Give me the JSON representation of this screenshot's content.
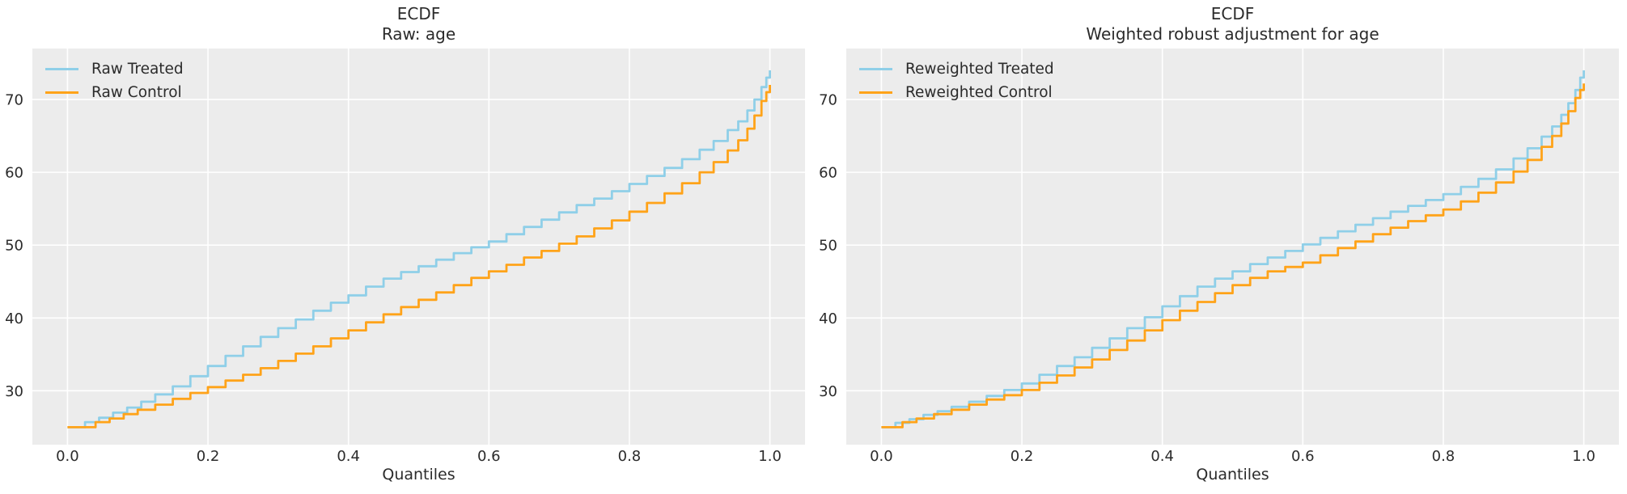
{
  "figure": {
    "background_color": "#ffffff",
    "axes_background_color": "#ececec",
    "grid_color": "#ffffff",
    "text_color": "#2b2b2b",
    "treated_color": "#8fcfe8",
    "control_color": "#ffa319"
  },
  "chart_data": [
    {
      "type": "line",
      "subtype": "step-quantile-ecdf",
      "title_line1": "ECDF",
      "title_line2": "Raw: age",
      "xlabel": "Quantiles",
      "ylabel": "",
      "grid": true,
      "legend_position": "upper-left",
      "xlim": [
        -0.05,
        1.05
      ],
      "ylim": [
        22.6,
        77.0
      ],
      "x_ticks": [
        {
          "value": 0.0,
          "label": "0.0"
        },
        {
          "value": 0.2,
          "label": "0.2"
        },
        {
          "value": 0.4,
          "label": "0.4"
        },
        {
          "value": 0.6,
          "label": "0.6"
        },
        {
          "value": 0.8,
          "label": "0.8"
        },
        {
          "value": 1.0,
          "label": "1.0"
        }
      ],
      "y_ticks": [
        {
          "value": 30,
          "label": "30"
        },
        {
          "value": 40,
          "label": "40"
        },
        {
          "value": 50,
          "label": "50"
        },
        {
          "value": 60,
          "label": "60"
        },
        {
          "value": 70,
          "label": "70"
        }
      ],
      "series": [
        {
          "name": "Raw Treated",
          "color_key": "treated_color",
          "steps": [
            [
              0,
              25
            ],
            [
              0.025,
              25.7
            ],
            [
              0.045,
              26.3
            ],
            [
              0.065,
              27
            ],
            [
              0.085,
              27.7
            ],
            [
              0.105,
              28.5
            ],
            [
              0.125,
              29.5
            ],
            [
              0.15,
              30.6
            ],
            [
              0.175,
              32
            ],
            [
              0.2,
              33.4
            ],
            [
              0.225,
              34.8
            ],
            [
              0.25,
              36.1
            ],
            [
              0.275,
              37.4
            ],
            [
              0.3,
              38.6
            ],
            [
              0.325,
              39.8
            ],
            [
              0.35,
              41
            ],
            [
              0.375,
              42.1
            ],
            [
              0.4,
              43.1
            ],
            [
              0.425,
              44.3
            ],
            [
              0.45,
              45.4
            ],
            [
              0.475,
              46.3
            ],
            [
              0.5,
              47.1
            ],
            [
              0.525,
              48
            ],
            [
              0.55,
              48.9
            ],
            [
              0.575,
              49.7
            ],
            [
              0.6,
              50.5
            ],
            [
              0.625,
              51.5
            ],
            [
              0.65,
              52.5
            ],
            [
              0.675,
              53.5
            ],
            [
              0.7,
              54.5
            ],
            [
              0.725,
              55.5
            ],
            [
              0.75,
              56.4
            ],
            [
              0.775,
              57.4
            ],
            [
              0.8,
              58.4
            ],
            [
              0.825,
              59.5
            ],
            [
              0.85,
              60.6
            ],
            [
              0.875,
              61.8
            ],
            [
              0.9,
              63.1
            ],
            [
              0.92,
              64.3
            ],
            [
              0.94,
              65.8
            ],
            [
              0.955,
              67
            ],
            [
              0.968,
              68.5
            ],
            [
              0.978,
              70
            ],
            [
              0.988,
              71.7
            ],
            [
              0.995,
              73
            ],
            [
              1,
              74
            ]
          ]
        },
        {
          "name": "Raw Control",
          "color_key": "control_color",
          "steps": [
            [
              0,
              25
            ],
            [
              0.04,
              25.7
            ],
            [
              0.06,
              26.2
            ],
            [
              0.08,
              26.8
            ],
            [
              0.1,
              27.4
            ],
            [
              0.125,
              28.1
            ],
            [
              0.15,
              28.9
            ],
            [
              0.175,
              29.7
            ],
            [
              0.2,
              30.5
            ],
            [
              0.225,
              31.4
            ],
            [
              0.25,
              32.2
            ],
            [
              0.275,
              33.1
            ],
            [
              0.3,
              34.1
            ],
            [
              0.325,
              35.1
            ],
            [
              0.35,
              36.1
            ],
            [
              0.375,
              37.2
            ],
            [
              0.4,
              38.3
            ],
            [
              0.425,
              39.4
            ],
            [
              0.45,
              40.5
            ],
            [
              0.475,
              41.5
            ],
            [
              0.5,
              42.5
            ],
            [
              0.525,
              43.5
            ],
            [
              0.55,
              44.5
            ],
            [
              0.575,
              45.5
            ],
            [
              0.6,
              46.4
            ],
            [
              0.625,
              47.3
            ],
            [
              0.65,
              48.3
            ],
            [
              0.675,
              49.2
            ],
            [
              0.7,
              50.2
            ],
            [
              0.725,
              51.2
            ],
            [
              0.75,
              52.3
            ],
            [
              0.775,
              53.4
            ],
            [
              0.8,
              54.6
            ],
            [
              0.825,
              55.8
            ],
            [
              0.85,
              57.1
            ],
            [
              0.875,
              58.5
            ],
            [
              0.9,
              60
            ],
            [
              0.92,
              61.4
            ],
            [
              0.94,
              63
            ],
            [
              0.955,
              64.4
            ],
            [
              0.968,
              66
            ],
            [
              0.978,
              67.8
            ],
            [
              0.988,
              69.8
            ],
            [
              0.995,
              71
            ],
            [
              1,
              72
            ]
          ]
        }
      ]
    },
    {
      "type": "line",
      "subtype": "step-quantile-ecdf",
      "title_line1": "ECDF",
      "title_line2": "Weighted robust adjustment for age",
      "xlabel": "Quantiles",
      "ylabel": "",
      "grid": true,
      "legend_position": "upper-left",
      "xlim": [
        -0.05,
        1.05
      ],
      "ylim": [
        22.6,
        77.0
      ],
      "x_ticks": [
        {
          "value": 0.0,
          "label": "0.0"
        },
        {
          "value": 0.2,
          "label": "0.2"
        },
        {
          "value": 0.4,
          "label": "0.4"
        },
        {
          "value": 0.6,
          "label": "0.6"
        },
        {
          "value": 0.8,
          "label": "0.8"
        },
        {
          "value": 1.0,
          "label": "1.0"
        }
      ],
      "y_ticks": [
        {
          "value": 30,
          "label": "30"
        },
        {
          "value": 40,
          "label": "40"
        },
        {
          "value": 50,
          "label": "50"
        },
        {
          "value": 60,
          "label": "60"
        },
        {
          "value": 70,
          "label": "70"
        }
      ],
      "series": [
        {
          "name": "Reweighted Treated",
          "color_key": "treated_color",
          "steps": [
            [
              0,
              25
            ],
            [
              0.02,
              25.6
            ],
            [
              0.04,
              26.1
            ],
            [
              0.06,
              26.7
            ],
            [
              0.08,
              27.2
            ],
            [
              0.1,
              27.8
            ],
            [
              0.125,
              28.5
            ],
            [
              0.15,
              29.3
            ],
            [
              0.175,
              30.1
            ],
            [
              0.2,
              31
            ],
            [
              0.225,
              32.2
            ],
            [
              0.25,
              33.4
            ],
            [
              0.275,
              34.6
            ],
            [
              0.3,
              35.9
            ],
            [
              0.325,
              37.2
            ],
            [
              0.35,
              38.6
            ],
            [
              0.375,
              40.1
            ],
            [
              0.4,
              41.6
            ],
            [
              0.425,
              43
            ],
            [
              0.45,
              44.3
            ],
            [
              0.475,
              45.4
            ],
            [
              0.5,
              46.4
            ],
            [
              0.525,
              47.4
            ],
            [
              0.55,
              48.3
            ],
            [
              0.575,
              49.2
            ],
            [
              0.6,
              50.1
            ],
            [
              0.625,
              51
            ],
            [
              0.65,
              51.9
            ],
            [
              0.675,
              52.8
            ],
            [
              0.7,
              53.7
            ],
            [
              0.725,
              54.6
            ],
            [
              0.75,
              55.4
            ],
            [
              0.775,
              56.2
            ],
            [
              0.8,
              57
            ],
            [
              0.825,
              58
            ],
            [
              0.85,
              59.1
            ],
            [
              0.875,
              60.4
            ],
            [
              0.9,
              61.9
            ],
            [
              0.92,
              63.3
            ],
            [
              0.94,
              64.9
            ],
            [
              0.955,
              66.3
            ],
            [
              0.968,
              67.9
            ],
            [
              0.978,
              69.5
            ],
            [
              0.988,
              71.3
            ],
            [
              0.995,
              73
            ],
            [
              1,
              74
            ]
          ]
        },
        {
          "name": "Reweighted Control",
          "color_key": "control_color",
          "steps": [
            [
              0,
              25
            ],
            [
              0.03,
              25.7
            ],
            [
              0.05,
              26.2
            ],
            [
              0.075,
              26.8
            ],
            [
              0.1,
              27.4
            ],
            [
              0.125,
              28.1
            ],
            [
              0.15,
              28.8
            ],
            [
              0.175,
              29.4
            ],
            [
              0.2,
              30.1
            ],
            [
              0.225,
              31.1
            ],
            [
              0.25,
              32.1
            ],
            [
              0.275,
              33.2
            ],
            [
              0.3,
              34.3
            ],
            [
              0.325,
              35.6
            ],
            [
              0.35,
              36.9
            ],
            [
              0.375,
              38.3
            ],
            [
              0.4,
              39.7
            ],
            [
              0.425,
              41
            ],
            [
              0.45,
              42.2
            ],
            [
              0.475,
              43.4
            ],
            [
              0.5,
              44.5
            ],
            [
              0.525,
              45.5
            ],
            [
              0.55,
              46.4
            ],
            [
              0.575,
              47
            ],
            [
              0.6,
              47.6
            ],
            [
              0.625,
              48.6
            ],
            [
              0.65,
              49.6
            ],
            [
              0.675,
              50.5
            ],
            [
              0.7,
              51.5
            ],
            [
              0.725,
              52.4
            ],
            [
              0.75,
              53.3
            ],
            [
              0.775,
              54.1
            ],
            [
              0.8,
              54.9
            ],
            [
              0.825,
              56
            ],
            [
              0.85,
              57.2
            ],
            [
              0.875,
              58.6
            ],
            [
              0.9,
              60.1
            ],
            [
              0.92,
              61.7
            ],
            [
              0.94,
              63.5
            ],
            [
              0.955,
              65
            ],
            [
              0.968,
              66.7
            ],
            [
              0.978,
              68.4
            ],
            [
              0.988,
              70.2
            ],
            [
              0.995,
              71.3
            ],
            [
              1,
              72.2
            ]
          ]
        }
      ]
    }
  ]
}
